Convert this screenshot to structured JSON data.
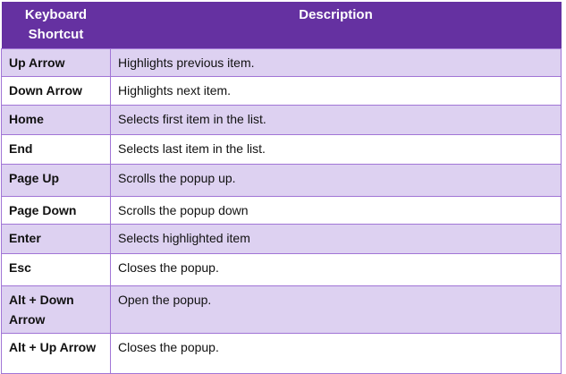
{
  "colors": {
    "header": "#6531A1",
    "alt_row": "#DDD1F1",
    "border": "#A175D6"
  },
  "headers": [
    "Keyboard Shortcut",
    "Description"
  ],
  "rows": [
    {
      "key": "Up Arrow",
      "desc": "Highlights previous item."
    },
    {
      "key": "Down Arrow",
      "desc": "Highlights next item."
    },
    {
      "key": "Home",
      "desc": "Selects first item in the list."
    },
    {
      "key": "End",
      "desc": "Selects last item in the list."
    },
    {
      "key": "Page Up",
      "desc": "Scrolls the popup up."
    },
    {
      "key": "Page Down",
      "desc": "Scrolls the popup down"
    },
    {
      "key": "Enter",
      "desc": "Selects highlighted item"
    },
    {
      "key": "Esc",
      "desc": "Closes the popup."
    },
    {
      "key": "Alt + Down Arrow",
      "desc": "Open the popup."
    },
    {
      "key": "Alt + Up Arrow",
      "desc": "Closes the popup."
    }
  ]
}
